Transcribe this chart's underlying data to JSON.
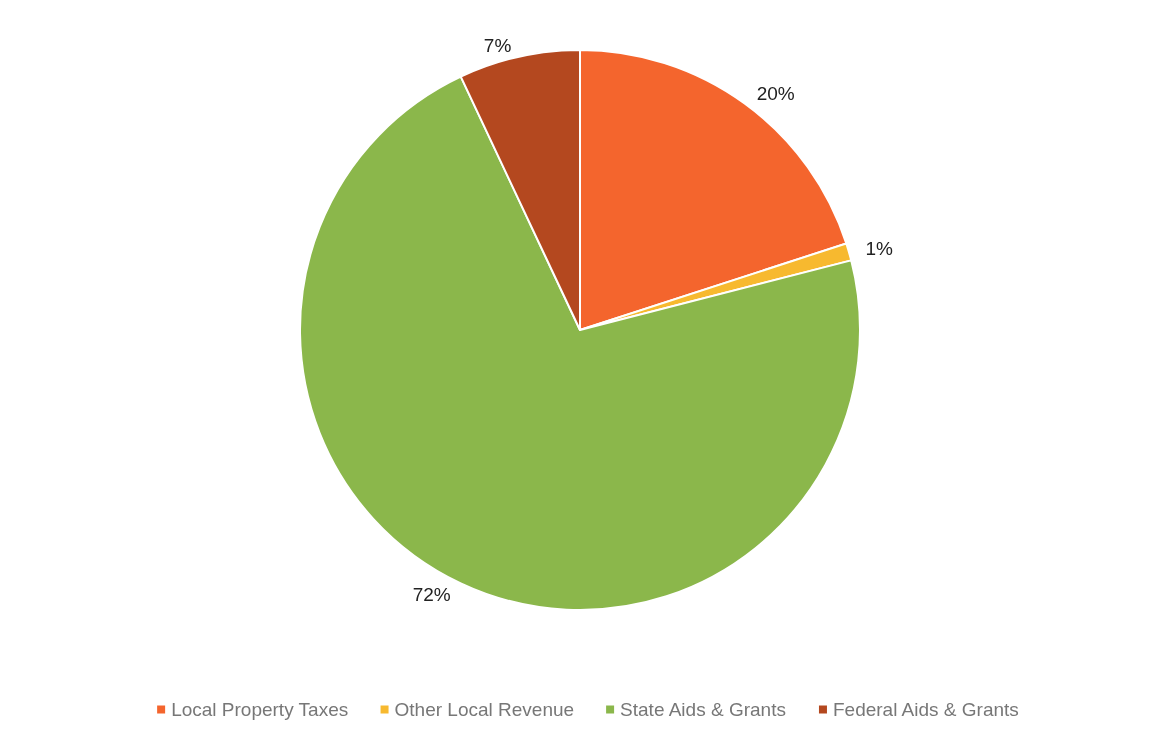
{
  "chart_data": {
    "type": "pie",
    "categories": [
      "Local Property Taxes",
      "Other Local Revenue",
      "State Aids & Grants",
      "Federal Aids & Grants"
    ],
    "values": [
      20,
      1,
      72,
      7
    ],
    "colors": [
      "#f4652d",
      "#f7b92f",
      "#8bb74b",
      "#b4481f"
    ],
    "value_labels": [
      "20%",
      "1%",
      "72%",
      "7%"
    ],
    "legend": "bottom"
  }
}
